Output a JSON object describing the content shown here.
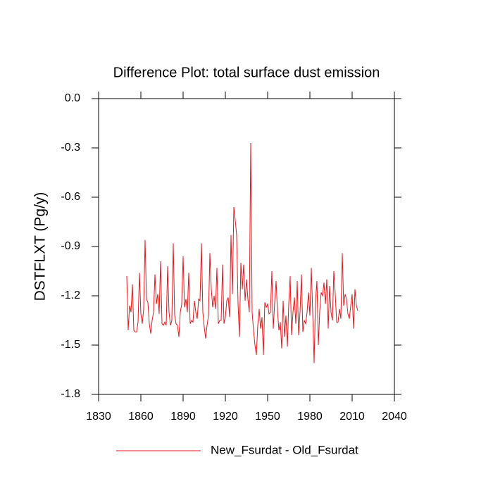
{
  "chart_data": {
    "type": "line",
    "title": "Difference Plot: total surface dust emission",
    "y_label": "DSTFLXT  (Pg/y)",
    "x": [
      1850,
      1851,
      1852,
      1853,
      1854,
      1855,
      1856,
      1857,
      1858,
      1859,
      1860,
      1861,
      1862,
      1863,
      1864,
      1865,
      1866,
      1867,
      1868,
      1869,
      1870,
      1871,
      1872,
      1873,
      1874,
      1875,
      1876,
      1877,
      1878,
      1879,
      1880,
      1881,
      1882,
      1883,
      1884,
      1885,
      1886,
      1887,
      1888,
      1889,
      1890,
      1891,
      1892,
      1893,
      1894,
      1895,
      1896,
      1897,
      1898,
      1899,
      1900,
      1901,
      1902,
      1903,
      1904,
      1905,
      1906,
      1907,
      1908,
      1909,
      1910,
      1911,
      1912,
      1913,
      1914,
      1915,
      1916,
      1917,
      1918,
      1919,
      1920,
      1921,
      1922,
      1923,
      1924,
      1925,
      1926,
      1927,
      1928,
      1929,
      1930,
      1931,
      1932,
      1933,
      1934,
      1935,
      1936,
      1937,
      1938,
      1939,
      1940,
      1941,
      1942,
      1943,
      1944,
      1945,
      1946,
      1947,
      1948,
      1949,
      1950,
      1951,
      1952,
      1953,
      1954,
      1955,
      1956,
      1957,
      1958,
      1959,
      1960,
      1961,
      1962,
      1963,
      1964,
      1965,
      1966,
      1967,
      1968,
      1969,
      1970,
      1971,
      1972,
      1973,
      1974,
      1975,
      1976,
      1977,
      1978,
      1979,
      1980,
      1981,
      1982,
      1983,
      1984,
      1985,
      1986,
      1987,
      1988,
      1989,
      1990,
      1991,
      1992,
      1993,
      1994,
      1995,
      1996,
      1997,
      1998,
      1999,
      2000,
      2001,
      2002,
      2003,
      2004,
      2005,
      2006,
      2007,
      2008,
      2009,
      2010,
      2011,
      2012,
      2013,
      2014
    ],
    "series": [
      {
        "name": "New_Fsurdat - Old_Fsurdat",
        "color": "#e41a1c",
        "values": [
          -1.08,
          -1.41,
          -1.26,
          -1.3,
          -1.13,
          -1.41,
          -1.42,
          -1.42,
          -1.36,
          -1.06,
          -1.31,
          -1.37,
          -1.28,
          -0.86,
          -1.22,
          -1.24,
          -1.37,
          -1.43,
          -1.35,
          -1.3,
          -1.07,
          -1.25,
          -1.19,
          -1.31,
          -0.99,
          -1.37,
          -1.38,
          -1.36,
          -1.38,
          -1.02,
          -1.3,
          -1.38,
          -1.35,
          -0.88,
          -1.32,
          -1.37,
          -1.38,
          -1.45,
          -1.3,
          -1.25,
          -0.96,
          -1.27,
          -1.22,
          -1.3,
          -1.06,
          -1.37,
          -1.35,
          -1.36,
          -1.23,
          -1.3,
          -1.34,
          -1.22,
          -1.23,
          -0.88,
          -1.3,
          -1.39,
          -1.46,
          -1.38,
          -1.32,
          -0.94,
          -1.16,
          -1.27,
          -1.2,
          -1.28,
          -1.03,
          -1.37,
          -1.35,
          -1.35,
          -1.01,
          -1.37,
          -1.33,
          -1.23,
          -1.21,
          -1.33,
          -0.83,
          -1.19,
          -0.66,
          -0.74,
          -0.83,
          -1.25,
          -1.45,
          -1.0,
          -1.16,
          -1.01,
          -1.23,
          -1.1,
          -1.22,
          -1.3,
          -0.27,
          -1.3,
          -1.41,
          -1.5,
          -1.56,
          -1.38,
          -1.28,
          -1.4,
          -1.33,
          -1.56,
          -1.24,
          -1.27,
          -1.25,
          -1.31,
          -1.3,
          -1.05,
          -1.4,
          -1.24,
          -1.11,
          -1.29,
          -1.41,
          -1.36,
          -1.52,
          -1.23,
          -1.45,
          -1.32,
          -1.51,
          -1.25,
          -1.08,
          -1.44,
          -1.3,
          -1.21,
          -1.37,
          -1.11,
          -1.44,
          -1.3,
          -1.07,
          -1.42,
          -1.35,
          -1.37,
          -1.3,
          -1.18,
          -1.32,
          -1.03,
          -1.3,
          -1.61,
          -1.23,
          -1.11,
          -1.5,
          -1.29,
          -1.18,
          -1.2,
          -1.12,
          -1.25,
          -1.1,
          -1.4,
          -1.14,
          -1.3,
          -1.35,
          -1.05,
          -1.19,
          -1.36,
          -1.36,
          -1.28,
          -1.34,
          -0.94,
          -1.26,
          -1.19,
          -1.22,
          -1.31,
          -1.34,
          -1.26,
          -1.19,
          -1.4,
          -1.16,
          -1.26,
          -1.29
        ]
      }
    ],
    "xlim": [
      1830,
      2040
    ],
    "xticks": [
      1830,
      1860,
      1890,
      1920,
      1950,
      1980,
      2010,
      2040
    ],
    "ylim": [
      -1.8,
      0
    ],
    "yticks": [
      {
        "value": 0,
        "label": "0.0"
      },
      -0.3,
      -0.6,
      -0.9,
      -1.2,
      -1.5,
      -1.8
    ],
    "grid": false,
    "legend": "bottom"
  }
}
